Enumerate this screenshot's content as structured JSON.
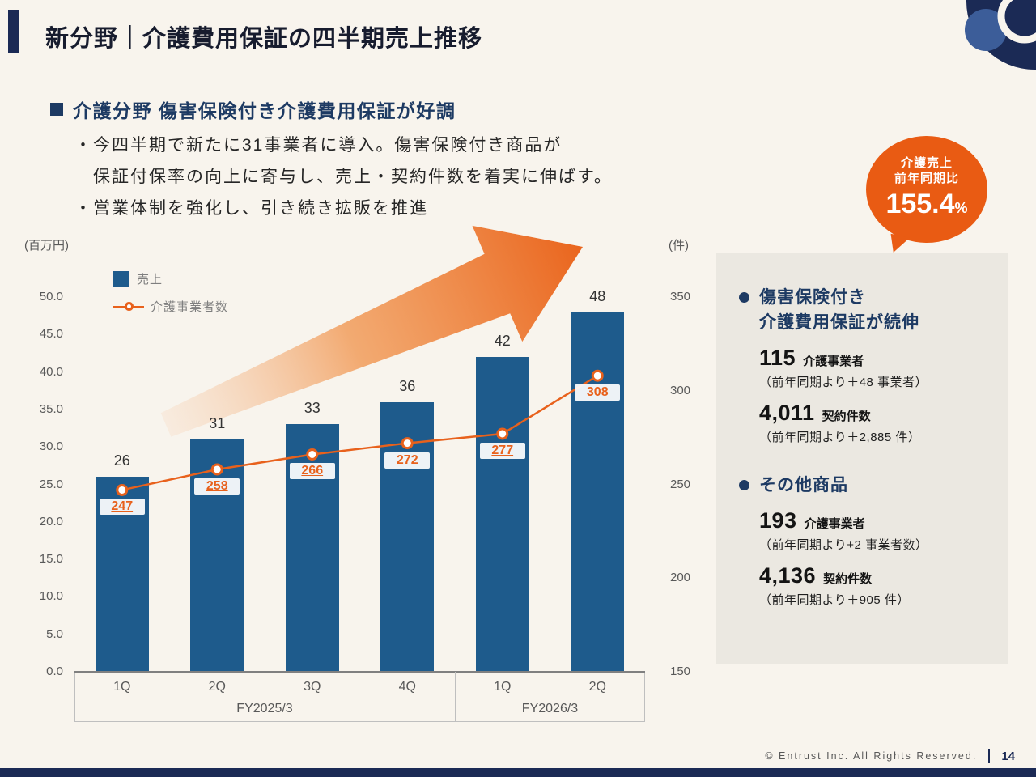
{
  "slide": {
    "title": "新分野｜介護費用保証の四半期売上推移",
    "copyright": "© Entrust Inc. All Rights Reserved.",
    "page_number": "14"
  },
  "colors": {
    "navy": "#1b2a55",
    "heading_navy": "#1d3a63",
    "bar_blue": "#1e5b8c",
    "orange": "#e8611c",
    "badge_orange": "#e95b13",
    "background": "#f8f4ed",
    "panel_background": "#ebe8e1"
  },
  "highlight": {
    "heading": "介護分野 傷害保険付き介護費用保証が好調",
    "bullets": [
      "・今四半期で新たに31事業者に導入。傷害保険付き商品が",
      "　保証付保率の向上に寄与し、売上・契約件数を着実に伸ばす。",
      "・営業体制を強化し、引き続き拡販を推進"
    ]
  },
  "badge": {
    "line1": "介護売上",
    "line2": "前年同期比",
    "value": "155.4",
    "unit": "%"
  },
  "chart_data": {
    "type": "bar",
    "combo": "bar+line",
    "title": "介護費用保証の四半期売上推移",
    "categories": [
      "1Q",
      "2Q",
      "3Q",
      "4Q",
      "1Q",
      "2Q"
    ],
    "category_groups": [
      {
        "label": "FY2025/3",
        "span": 4
      },
      {
        "label": "FY2026/3",
        "span": 2
      }
    ],
    "series": [
      {
        "name": "売上",
        "type": "bar",
        "axis": "left",
        "color": "#1e5b8c",
        "values": [
          26,
          31,
          33,
          36,
          42,
          48
        ]
      },
      {
        "name": "介護事業者数",
        "type": "line",
        "axis": "right",
        "color": "#e8611c",
        "values": [
          247,
          258,
          266,
          272,
          277,
          308
        ]
      }
    ],
    "left_axis": {
      "title": "(百万円)",
      "min": 0,
      "max": 50,
      "step": 5
    },
    "right_axis": {
      "title": "(件)",
      "min": 150,
      "max": 350,
      "step": 50
    },
    "legend_position": "top-left",
    "grid": false,
    "annotation": "growth-arrow-up-right"
  },
  "panel": {
    "sections": [
      {
        "title_lines": [
          "傷害保険付き",
          "介護費用保証が続伸"
        ],
        "stats": [
          {
            "value": "115",
            "label": "介護事業者",
            "note": "（前年同期より＋48 事業者）"
          },
          {
            "value": "4,011",
            "label": "契約件数",
            "note": "（前年同期より＋2,885 件）"
          }
        ]
      },
      {
        "title_lines": [
          "その他商品"
        ],
        "stats": [
          {
            "value": "193",
            "label": "介護事業者",
            "note": "（前年同期より+2 事業者数）"
          },
          {
            "value": "4,136",
            "label": "契約件数",
            "note": "（前年同期より＋905 件）"
          }
        ]
      }
    ]
  }
}
